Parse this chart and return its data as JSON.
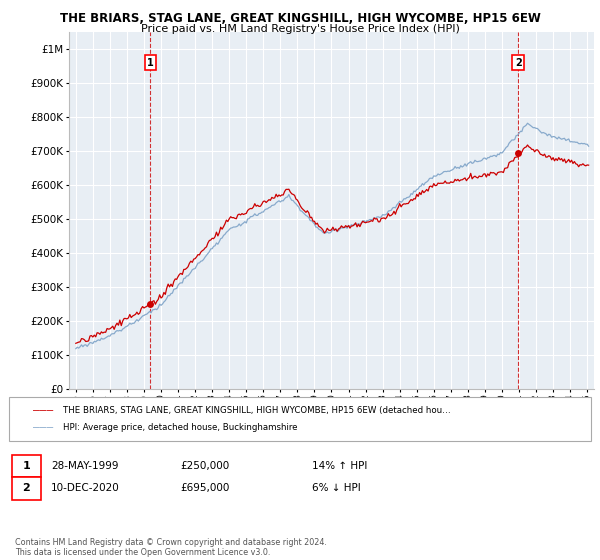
{
  "title": "THE BRIARS, STAG LANE, GREAT KINGSHILL, HIGH WYCOMBE, HP15 6EW",
  "subtitle": "Price paid vs. HM Land Registry's House Price Index (HPI)",
  "ylim": [
    0,
    1050000
  ],
  "yticks": [
    0,
    100000,
    200000,
    300000,
    400000,
    500000,
    600000,
    700000,
    800000,
    900000,
    1000000
  ],
  "ytick_labels": [
    "£0",
    "£100K",
    "£200K",
    "£300K",
    "£400K",
    "£500K",
    "£600K",
    "£700K",
    "£800K",
    "£900K",
    "£1M"
  ],
  "sale1_date": "28-MAY-1999",
  "sale1_price": 250000,
  "sale1_hpi": "14% ↑ HPI",
  "sale1_x": 1999.38,
  "sale2_date": "10-DEC-2020",
  "sale2_price": 695000,
  "sale2_hpi": "6% ↓ HPI",
  "sale2_x": 2020.95,
  "legend_red_label": "THE BRIARS, STAG LANE, GREAT KINGSHILL, HIGH WYCOMBE, HP15 6EW (detached hou…",
  "legend_blue_label": "HPI: Average price, detached house, Buckinghamshire",
  "footer": "Contains HM Land Registry data © Crown copyright and database right 2024.\nThis data is licensed under the Open Government Licence v3.0.",
  "red_color": "#cc0000",
  "blue_color": "#88aacc",
  "plot_bg": "#e8eef4",
  "grid_color": "#ffffff",
  "background_color": "#ffffff"
}
